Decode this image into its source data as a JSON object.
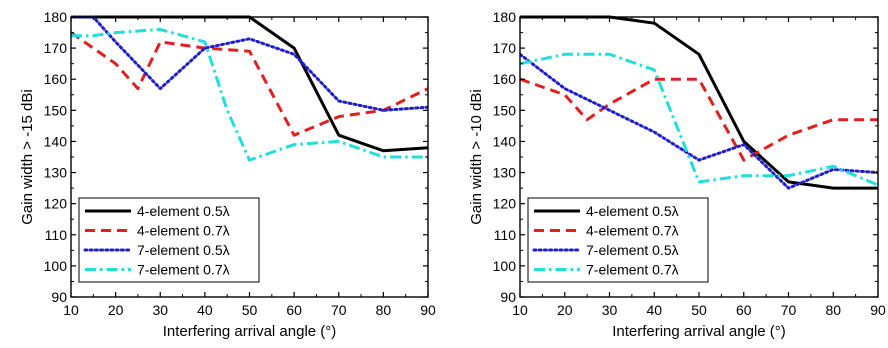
{
  "chart_data": [
    {
      "type": "line",
      "xlabel": "Interfering arrival angle (°)",
      "ylabel": "Gain width > -15 dBi",
      "xlim": [
        10,
        90
      ],
      "ylim": [
        90,
        180
      ],
      "xticks": [
        10,
        20,
        30,
        40,
        50,
        60,
        70,
        80,
        90
      ],
      "yticks": [
        90,
        100,
        110,
        120,
        130,
        140,
        150,
        160,
        170,
        180
      ],
      "grid": false,
      "legend_position": "bottom-left",
      "series": [
        {
          "name": "4-element 0.5λ",
          "color": "#000000",
          "style": "solid",
          "x": [
            10,
            20,
            30,
            40,
            50,
            60,
            70,
            80,
            90
          ],
          "y": [
            180,
            180,
            180,
            180,
            180,
            170,
            142,
            137,
            138
          ]
        },
        {
          "name": "4-element 0.7λ",
          "color": "#e02020",
          "style": "dashed",
          "x": [
            10,
            20,
            25,
            30,
            40,
            50,
            60,
            70,
            80,
            90
          ],
          "y": [
            175,
            165,
            157,
            172,
            170,
            169,
            142,
            148,
            150,
            157
          ]
        },
        {
          "name": "7-element 0.5λ",
          "color": "#1f1fcc",
          "style": "dotted",
          "x": [
            10,
            15,
            20,
            30,
            40,
            50,
            60,
            70,
            80,
            90
          ],
          "y": [
            180,
            180,
            172,
            157,
            170,
            173,
            168,
            153,
            150,
            151
          ]
        },
        {
          "name": "7-element 0.7λ",
          "color": "#22dddd",
          "style": "dashdot",
          "x": [
            10,
            15,
            20,
            30,
            40,
            45,
            50,
            60,
            70,
            80,
            90
          ],
          "y": [
            174,
            174,
            175,
            176,
            172,
            150,
            134,
            139,
            140,
            135,
            135
          ]
        }
      ]
    },
    {
      "type": "line",
      "xlabel": "Interfering arrival angle (°)",
      "ylabel": "Gain width > -10 dBi",
      "xlim": [
        10,
        90
      ],
      "ylim": [
        90,
        180
      ],
      "xticks": [
        10,
        20,
        30,
        40,
        50,
        60,
        70,
        80,
        90
      ],
      "yticks": [
        90,
        100,
        110,
        120,
        130,
        140,
        150,
        160,
        170,
        180
      ],
      "grid": false,
      "legend_position": "bottom-left",
      "series": [
        {
          "name": "4-element 0.5λ",
          "color": "#000000",
          "style": "solid",
          "x": [
            10,
            20,
            30,
            40,
            50,
            60,
            70,
            80,
            90
          ],
          "y": [
            180,
            180,
            180,
            178,
            168,
            140,
            127,
            125,
            125
          ]
        },
        {
          "name": "4-element 0.7λ",
          "color": "#e02020",
          "style": "dashed",
          "x": [
            10,
            20,
            25,
            30,
            40,
            50,
            60,
            70,
            80,
            90
          ],
          "y": [
            160,
            155,
            147,
            152,
            160,
            160,
            134,
            142,
            147,
            147
          ]
        },
        {
          "name": "7-element 0.5λ",
          "color": "#1f1fcc",
          "style": "dotted",
          "x": [
            10,
            20,
            30,
            40,
            50,
            60,
            70,
            80,
            90
          ],
          "y": [
            168,
            157,
            150,
            143,
            134,
            139,
            125,
            131,
            130
          ]
        },
        {
          "name": "7-element 0.7λ",
          "color": "#22dddd",
          "style": "dashdot",
          "x": [
            10,
            20,
            30,
            40,
            50,
            60,
            70,
            80,
            90
          ],
          "y": [
            165,
            168,
            168,
            163,
            127,
            129,
            129,
            132,
            126
          ]
        }
      ]
    }
  ]
}
